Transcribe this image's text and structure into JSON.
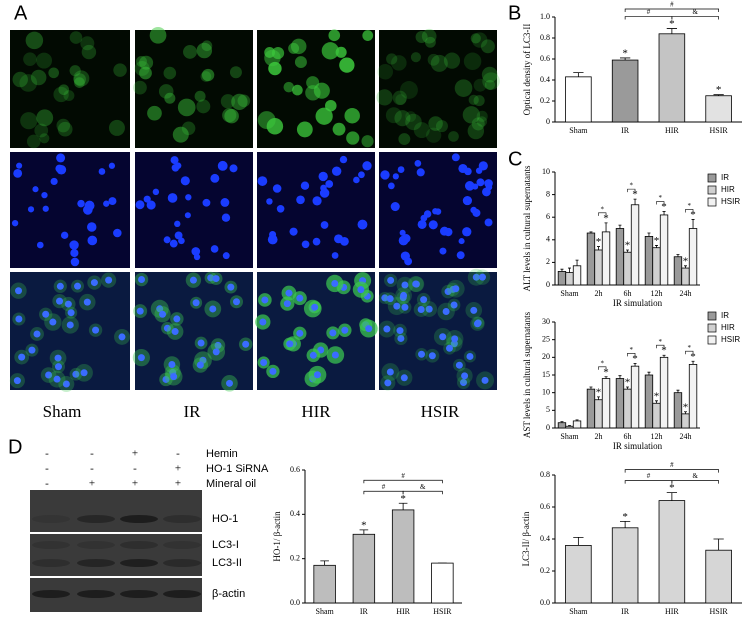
{
  "panel_labels": [
    "A",
    "B",
    "C",
    "D"
  ],
  "images": {
    "labels": [
      "Sham",
      "IR",
      "HIR",
      "HSIR"
    ]
  },
  "blot": {
    "treatments": [
      {
        "name": "Hemin",
        "signs": [
          "-",
          "-",
          "+",
          "-"
        ]
      },
      {
        "name": "HO-1 SiRNA",
        "signs": [
          "-",
          "-",
          "-",
          "+"
        ]
      },
      {
        "name": "Mineral oil",
        "signs": [
          "-",
          "+",
          "+",
          "+"
        ]
      }
    ],
    "bands": [
      "HO-1",
      "LC3-I",
      "LC3-II",
      "β-actin"
    ]
  },
  "chart_data": [
    {
      "type": "bar",
      "ylabel": "Optical density of LC3-II",
      "categories": [
        "Sham",
        "IR",
        "HIR",
        "HSIR"
      ],
      "values": [
        0.43,
        0.59,
        0.84,
        0.25
      ],
      "errors": [
        0.04,
        0.02,
        0.05,
        0.01
      ],
      "colors": [
        "#ffffff",
        "#9a9a9a",
        "#c4c4c4",
        "#e2e2e2"
      ],
      "markers": [
        null,
        "*",
        "*",
        "*"
      ],
      "brackets": [
        {
          "from": "IR",
          "to": "HSIR",
          "label": "#"
        },
        {
          "from": "IR",
          "to": "HIR",
          "label": "#"
        },
        {
          "from": "HIR",
          "to": "HSIR",
          "label": "&"
        }
      ],
      "ylim": [
        0,
        1
      ],
      "yticks": [
        0,
        0.2,
        0.4,
        0.6,
        0.8,
        {
          "value": 1,
          "label": "1.0"
        }
      ]
    },
    {
      "type": "grouped-bar",
      "ylabel": "ALT levels in cultural supernatants",
      "xlabel": "IR  simulation",
      "categories": [
        "Sham",
        "2h",
        "6h",
        "12h",
        "24h"
      ],
      "series": [
        {
          "name": "IR",
          "color": "#9a9a9a",
          "values": [
            1.2,
            4.6,
            5.0,
            4.3,
            2.5
          ],
          "errors": [
            0.2,
            0.1,
            0.3,
            0.3,
            0.2
          ]
        },
        {
          "name": "HIR",
          "color": "#d0d0d0",
          "values": [
            1.1,
            3.1,
            2.9,
            3.3,
            1.5
          ],
          "errors": [
            0.4,
            0.3,
            0.2,
            0.2,
            0.2
          ],
          "markers": [
            null,
            "*",
            "*",
            "*",
            "*"
          ]
        },
        {
          "name": "HSIR",
          "color": "#f2f2f2",
          "values": [
            1.7,
            4.7,
            7.1,
            6.2,
            5.0
          ],
          "errors": [
            0.5,
            0.8,
            0.5,
            0.3,
            0.8
          ],
          "markers": [
            null,
            "*",
            "*",
            "*",
            "*"
          ]
        }
      ],
      "group_brackets": [
        null,
        "*",
        "*",
        "*",
        "*"
      ],
      "ylim": [
        0,
        10
      ],
      "yticks": [
        0,
        2,
        4,
        6,
        8,
        10
      ]
    },
    {
      "type": "grouped-bar",
      "ylabel": "AST levels in cultural supernatants",
      "xlabel": "IR  simulation",
      "categories": [
        "Sham",
        "2h",
        "6h",
        "12h",
        "24h"
      ],
      "series": [
        {
          "name": "IR",
          "color": "#9a9a9a",
          "values": [
            1.5,
            11,
            14,
            15,
            10
          ],
          "errors": [
            0.3,
            0.6,
            0.8,
            0.8,
            0.7
          ]
        },
        {
          "name": "HIR",
          "color": "#d0d0d0",
          "values": [
            0.5,
            8,
            11,
            7,
            4
          ],
          "errors": [
            0.2,
            0.8,
            0.6,
            0.7,
            0.6
          ],
          "markers": [
            null,
            "*",
            "*",
            "*",
            "*"
          ]
        },
        {
          "name": "HSIR",
          "color": "#f2f2f2",
          "values": [
            2,
            14,
            17.5,
            20,
            18
          ],
          "errors": [
            0.3,
            0.5,
            0.8,
            0.6,
            0.9
          ],
          "markers": [
            null,
            "*",
            "*",
            "*",
            "*"
          ]
        }
      ],
      "group_brackets": [
        null,
        "*",
        "*",
        "*",
        "*"
      ],
      "ylim": [
        0,
        30
      ],
      "yticks": [
        0,
        5,
        10,
        15,
        20,
        25,
        30
      ]
    },
    {
      "type": "bar",
      "ylabel": "HO-1/ β-actin",
      "categories": [
        "Sham",
        "IR",
        "HIR",
        "HSIR"
      ],
      "values": [
        0.17,
        0.31,
        0.42,
        0.18
      ],
      "errors": [
        0.02,
        0.02,
        0.03,
        0.0
      ],
      "colors": [
        "#bdbdbd",
        "#bdbdbd",
        "#bdbdbd",
        "#ffffff"
      ],
      "markers": [
        null,
        "*",
        "*",
        null
      ],
      "brackets": [
        {
          "from": "IR",
          "to": "HSIR",
          "label": "#"
        },
        {
          "from": "IR",
          "to": "HIR",
          "label": "#"
        },
        {
          "from": "HIR",
          "to": "HSIR",
          "label": "&"
        }
      ],
      "ylim": [
        0,
        0.6
      ],
      "yticks": [
        {
          "value": 0,
          "label": "0.0"
        },
        0.2,
        0.4,
        0.6
      ]
    },
    {
      "type": "bar",
      "ylabel": "LC3-II/ β-actin",
      "categories": [
        "Sham",
        "IR",
        "HIR",
        "HSIR"
      ],
      "values": [
        0.36,
        0.47,
        0.64,
        0.33
      ],
      "errors": [
        0.05,
        0.04,
        0.05,
        0.07
      ],
      "colors": [
        "#d6d6d6",
        "#d6d6d6",
        "#d6d6d6",
        "#d6d6d6"
      ],
      "markers": [
        null,
        "*",
        "*",
        null
      ],
      "brackets": [
        {
          "from": "IR",
          "to": "HSIR",
          "label": "#"
        },
        {
          "from": "IR",
          "to": "HIR",
          "label": "#"
        },
        {
          "from": "HIR",
          "to": "HSIR",
          "label": "&"
        }
      ],
      "ylim": [
        0,
        0.8
      ],
      "yticks": [
        {
          "value": 0,
          "label": "0.0"
        },
        0.2,
        0.4,
        0.6,
        0.8
      ]
    }
  ]
}
